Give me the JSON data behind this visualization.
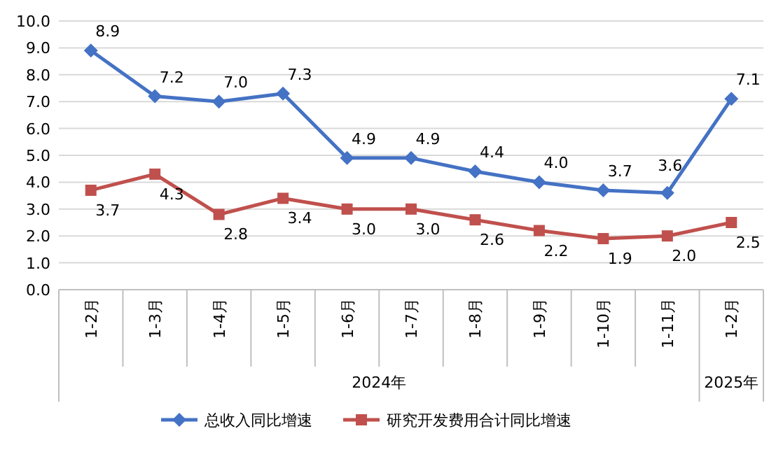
{
  "chart_data": {
    "type": "line",
    "categories": [
      "1-2月",
      "1-3月",
      "1-4月",
      "1-5月",
      "1-6月",
      "1-7月",
      "1-8月",
      "1-9月",
      "1-10月",
      "1-11月",
      "1-2月"
    ],
    "series": [
      {
        "name": "总收入同比增速",
        "color": "#4472c4",
        "marker": "diamond",
        "values": [
          8.9,
          7.2,
          7.0,
          7.3,
          4.9,
          4.9,
          4.4,
          4.0,
          3.7,
          3.6,
          7.1
        ],
        "value_labels": [
          "8.9",
          "7.2",
          "7.0",
          "7.3",
          "4.9",
          "4.9",
          "4.4",
          "4.0",
          "3.7",
          "3.6",
          "7.1"
        ]
      },
      {
        "name": "研究开发费用合计同比增速",
        "color": "#c0504d",
        "marker": "square",
        "values": [
          3.7,
          4.3,
          2.8,
          3.4,
          3.0,
          3.0,
          2.6,
          2.2,
          1.9,
          2.0,
          2.5
        ],
        "value_labels": [
          "3.7",
          "4.3",
          "2.8",
          "3.4",
          "3.0",
          "3.0",
          "2.6",
          "2.2",
          "1.9",
          "2.0",
          "2.5"
        ]
      }
    ],
    "ylim": [
      0,
      10
    ],
    "yticks": [
      {
        "value": 0,
        "label": "0.0"
      },
      {
        "value": 1,
        "label": "1.0"
      },
      {
        "value": 2,
        "label": "2.0"
      },
      {
        "value": 3,
        "label": "3.0"
      },
      {
        "value": 4,
        "label": "4.0"
      },
      {
        "value": 5,
        "label": "5.0"
      },
      {
        "value": 6,
        "label": "6.0"
      },
      {
        "value": 7,
        "label": "7.0"
      },
      {
        "value": 8,
        "label": "8.0"
      },
      {
        "value": 9,
        "label": "9.0"
      },
      {
        "value": 10,
        "label": "10.0"
      }
    ],
    "grid": "y",
    "legend": "bottom",
    "line_style": "solid",
    "annotations": [
      "2024年",
      "2025年"
    ]
  }
}
